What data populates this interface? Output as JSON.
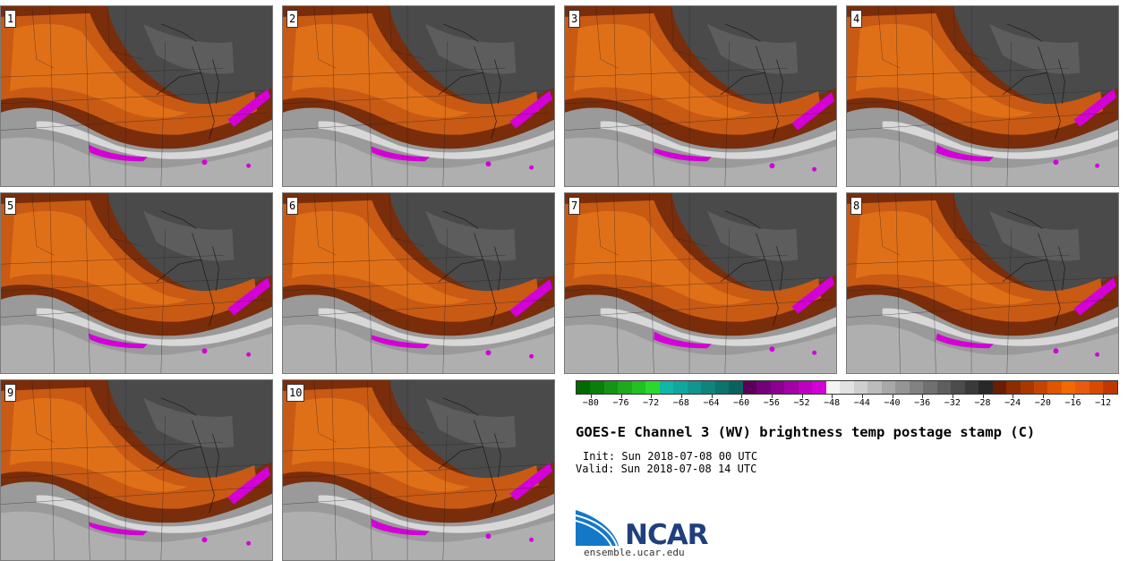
{
  "panels": [
    {
      "label": "1"
    },
    {
      "label": "2"
    },
    {
      "label": "3"
    },
    {
      "label": "4"
    },
    {
      "label": "5"
    },
    {
      "label": "6"
    },
    {
      "label": "7"
    },
    {
      "label": "8"
    },
    {
      "label": "9"
    },
    {
      "label": "10"
    }
  ],
  "colorbar": {
    "ticks": [
      "−80",
      "−76",
      "−72",
      "−68",
      "−64",
      "−60",
      "−56",
      "−52",
      "−48",
      "−44",
      "−40",
      "−36",
      "−32",
      "−28",
      "−24",
      "−20",
      "−16",
      "−12"
    ],
    "colors": [
      "#006a00",
      "#0a7d0a",
      "#159315",
      "#1ea91e",
      "#22c122",
      "#2bd82b",
      "#11b6a6",
      "#12a6a0",
      "#10958f",
      "#0f847f",
      "#0d736f",
      "#0a625f",
      "#5a005a",
      "#74007a",
      "#8c008f",
      "#a300a8",
      "#bd00c2",
      "#d400d8",
      "#f4f4f4",
      "#e2e2e2",
      "#cfcfcf",
      "#bcbcbc",
      "#a8a8a8",
      "#959595",
      "#828282",
      "#707070",
      "#5e5e5e",
      "#4c4c4c",
      "#3a3a3a",
      "#282828",
      "#6b1d00",
      "#8c2c00",
      "#a83800",
      "#c44500",
      "#df5500",
      "#f06a00",
      "#e85a10",
      "#d84a00",
      "#c13700"
    ]
  },
  "title": "GOES-E Channel 3 (WV) brightness temp postage stamp (C)",
  "init": "Init: Sun 2018-07-08 00 UTC",
  "valid": "Valid: Sun 2018-07-08 14 UTC",
  "logo": {
    "name": "NCAR",
    "url": "ensemble.ucar.edu"
  }
}
